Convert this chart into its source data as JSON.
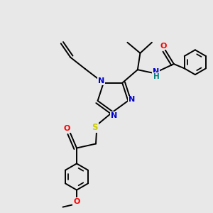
{
  "bg_color": "#e8e8e8",
  "atom_colors": {
    "O": "#ff0000",
    "N": "#0000cc",
    "S": "#cccc00",
    "C": "#000000",
    "H": "#008080"
  },
  "bond_color": "#000000",
  "bond_width": 1.4
}
